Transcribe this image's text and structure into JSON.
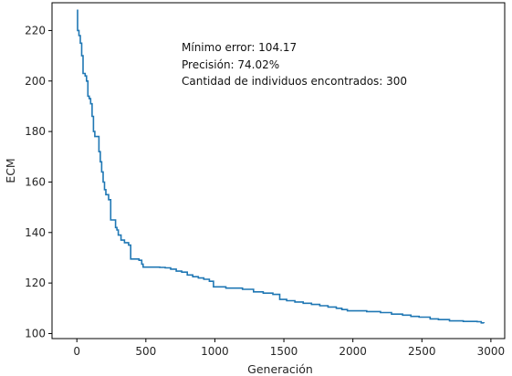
{
  "chart_data": {
    "type": "line",
    "xlabel": "Generación",
    "ylabel": "ECM",
    "xlim": [
      -180,
      3100
    ],
    "ylim": [
      98,
      231
    ],
    "xticks": [
      0,
      500,
      1000,
      1500,
      2000,
      2500,
      3000
    ],
    "yticks": [
      100,
      120,
      140,
      160,
      180,
      200,
      220
    ],
    "grid": false,
    "line_color": "#1f77b4",
    "annotations": [
      "Mínimo error: 104.17",
      "Precisión: 74.02%",
      "Cantidad de individuos encontrados: 300"
    ],
    "series": [
      {
        "values_note": "step curve, x in generations, y in ECM",
        "points": [
          [
            0,
            228
          ],
          [
            5,
            220
          ],
          [
            15,
            218
          ],
          [
            25,
            215
          ],
          [
            35,
            210
          ],
          [
            45,
            203
          ],
          [
            60,
            202
          ],
          [
            70,
            200
          ],
          [
            80,
            194
          ],
          [
            90,
            193
          ],
          [
            100,
            191
          ],
          [
            110,
            186
          ],
          [
            120,
            180
          ],
          [
            130,
            178
          ],
          [
            150,
            178
          ],
          [
            160,
            172
          ],
          [
            170,
            168
          ],
          [
            180,
            164
          ],
          [
            190,
            160
          ],
          [
            200,
            157
          ],
          [
            210,
            155
          ],
          [
            230,
            153
          ],
          [
            245,
            145
          ],
          [
            270,
            145
          ],
          [
            280,
            142
          ],
          [
            290,
            141
          ],
          [
            300,
            139
          ],
          [
            320,
            137
          ],
          [
            345,
            136
          ],
          [
            375,
            135
          ],
          [
            390,
            129.5
          ],
          [
            420,
            129.5
          ],
          [
            450,
            129
          ],
          [
            470,
            127.5
          ],
          [
            480,
            126.3
          ],
          [
            560,
            126.3
          ],
          [
            600,
            126.2
          ],
          [
            640,
            126
          ],
          [
            680,
            125.5
          ],
          [
            720,
            124.7
          ],
          [
            760,
            124.3
          ],
          [
            800,
            123.2
          ],
          [
            840,
            122.5
          ],
          [
            880,
            122
          ],
          [
            920,
            121.5
          ],
          [
            960,
            120.7
          ],
          [
            990,
            118.5
          ],
          [
            1050,
            118.5
          ],
          [
            1080,
            118
          ],
          [
            1200,
            117.5
          ],
          [
            1280,
            116.5
          ],
          [
            1350,
            116
          ],
          [
            1420,
            115.5
          ],
          [
            1470,
            113.5
          ],
          [
            1520,
            113
          ],
          [
            1580,
            112.5
          ],
          [
            1640,
            112
          ],
          [
            1700,
            111.5
          ],
          [
            1760,
            111
          ],
          [
            1820,
            110.5
          ],
          [
            1880,
            110
          ],
          [
            1920,
            109.5
          ],
          [
            1960,
            109
          ],
          [
            2000,
            109
          ],
          [
            2100,
            108.7
          ],
          [
            2200,
            108.3
          ],
          [
            2280,
            107.7
          ],
          [
            2360,
            107.3
          ],
          [
            2420,
            106.8
          ],
          [
            2480,
            106.5
          ],
          [
            2560,
            105.8
          ],
          [
            2620,
            105.5
          ],
          [
            2700,
            105
          ],
          [
            2800,
            104.8
          ],
          [
            2900,
            104.7
          ],
          [
            2930,
            104.2
          ],
          [
            2950,
            104.17
          ]
        ]
      }
    ]
  }
}
